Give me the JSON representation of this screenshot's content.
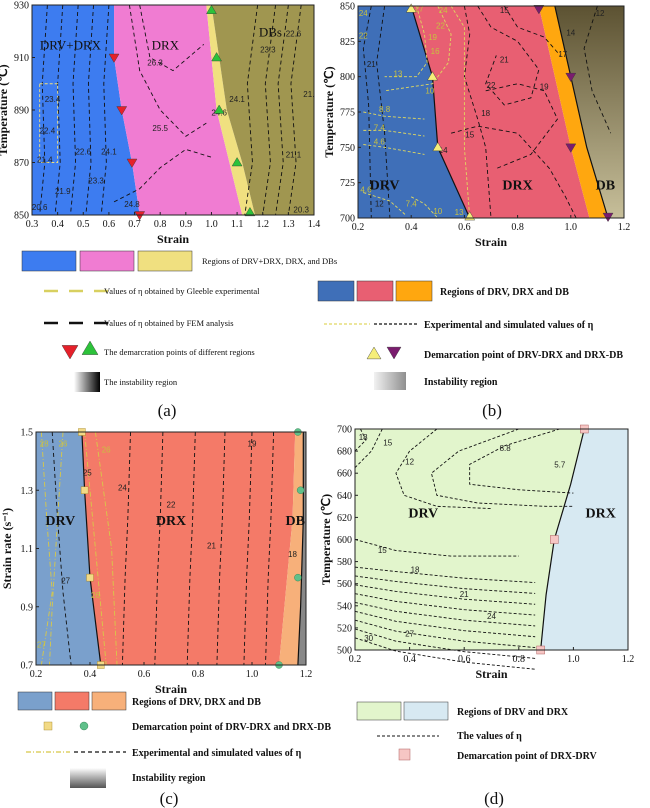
{
  "chart_data": [
    {
      "panel": "(a)",
      "type": "area",
      "xlabel": "Strain",
      "ylabel": "Temperature (℃)",
      "xlim": [
        0.3,
        1.4
      ],
      "ylim": [
        850,
        930
      ],
      "xticks": [
        "0.3",
        "0.4",
        "0.5",
        "0.6",
        "0.7",
        "0.8",
        "0.9",
        "1.0",
        "1.1",
        "1.2",
        "1.3",
        "1.4"
      ],
      "yticks": [
        "850",
        "870",
        "890",
        "910",
        "930"
      ],
      "regions": [
        "DRV+DRX",
        "DRX",
        "DBs"
      ],
      "colors": {
        "drv": "#3d7cf0",
        "drx": "#f07cd2",
        "db": "#a09650",
        "band": "#f0e080"
      },
      "contour_labels": [
        {
          "text": "26.3",
          "x": 0.78,
          "y": 907
        },
        {
          "text": "25.5",
          "x": 0.8,
          "y": 882
        },
        {
          "text": "24.8",
          "x": 0.69,
          "y": 853
        },
        {
          "text": "24.6",
          "x": 1.03,
          "y": 888
        },
        {
          "text": "24.1",
          "x": 1.1,
          "y": 893
        },
        {
          "text": "23.3",
          "x": 1.22,
          "y": 912
        },
        {
          "text": "22.6",
          "x": 1.32,
          "y": 918
        },
        {
          "text": "21.",
          "x": 1.38,
          "y": 895
        },
        {
          "text": "21.1",
          "x": 1.32,
          "y": 872
        },
        {
          "text": "20.3",
          "x": 1.35,
          "y": 851
        },
        {
          "text": "22.6",
          "x": 0.5,
          "y": 873
        },
        {
          "text": "23.3",
          "x": 0.55,
          "y": 862
        },
        {
          "text": "24.1",
          "x": 0.6,
          "y": 873
        },
        {
          "text": "21.4",
          "x": 0.35,
          "y": 870
        },
        {
          "text": "21.9",
          "x": 0.42,
          "y": 858
        },
        {
          "text": "20.6",
          "x": 0.33,
          "y": 852
        },
        {
          "text": "22.4",
          "x": 0.36,
          "y": 881
        },
        {
          "text": "23.4",
          "x": 0.38,
          "y": 893
        }
      ],
      "points": [
        {
          "x": 0.62,
          "y": 910,
          "c": "red"
        },
        {
          "x": 0.65,
          "y": 890,
          "c": "red"
        },
        {
          "x": 0.69,
          "y": 870,
          "c": "red"
        },
        {
          "x": 0.72,
          "y": 850,
          "c": "red"
        },
        {
          "x": 1.0,
          "y": 928,
          "c": "green"
        },
        {
          "x": 1.02,
          "y": 910,
          "c": "green"
        },
        {
          "x": 1.03,
          "y": 890,
          "c": "green"
        },
        {
          "x": 1.1,
          "y": 870,
          "c": "green"
        },
        {
          "x": 1.15,
          "y": 851,
          "c": "green"
        }
      ],
      "legend": [
        "Regions of DRV+DRX, DRX, and DBs",
        "Values of η obtained by Gleeble experimental",
        "Values of η obtained by FEM analysis",
        "The demarcration points of different regions",
        "The instability region"
      ]
    },
    {
      "panel": "(b)",
      "type": "area",
      "xlabel": "Strain",
      "ylabel": "Temperature (℃)",
      "xlim": [
        0.2,
        1.2
      ],
      "ylim": [
        700,
        850
      ],
      "xticks": [
        "0.2",
        "0.4",
        "0.6",
        "0.8",
        "1.0",
        "1.2"
      ],
      "yticks": [
        "700",
        "725",
        "750",
        "775",
        "800",
        "825",
        "850"
      ],
      "regions": [
        "DRV",
        "DRX",
        "DB"
      ],
      "colors": {
        "drv": "#3f6fb8",
        "drx": "#e85f72",
        "db": "#ffa70f",
        "instab": "#8a7a50"
      },
      "contour_labels": [
        {
          "text": "24",
          "x": 0.22,
          "y": 843
        },
        {
          "text": "22",
          "x": 0.22,
          "y": 827
        },
        {
          "text": "21",
          "x": 0.25,
          "y": 807
        },
        {
          "text": "27",
          "x": 0.43,
          "y": 846
        },
        {
          "text": "24",
          "x": 0.52,
          "y": 845
        },
        {
          "text": "22",
          "x": 0.51,
          "y": 834
        },
        {
          "text": "19",
          "x": 0.48,
          "y": 826
        },
        {
          "text": "16",
          "x": 0.49,
          "y": 816
        },
        {
          "text": "13",
          "x": 0.35,
          "y": 800
        },
        {
          "text": "10",
          "x": 0.47,
          "y": 788
        },
        {
          "text": "8.8",
          "x": 0.3,
          "y": 775
        },
        {
          "text": "7.4",
          "x": 0.28,
          "y": 762
        },
        {
          "text": "4.6",
          "x": 0.28,
          "y": 752
        },
        {
          "text": "15",
          "x": 0.75,
          "y": 845
        },
        {
          "text": "21",
          "x": 0.75,
          "y": 810
        },
        {
          "text": "22",
          "x": 0.7,
          "y": 792
        },
        {
          "text": "19",
          "x": 0.9,
          "y": 791
        },
        {
          "text": "18",
          "x": 0.68,
          "y": 772
        },
        {
          "text": "15",
          "x": 0.62,
          "y": 757
        },
        {
          "text": "14",
          "x": 0.52,
          "y": 746
        },
        {
          "text": "17",
          "x": 0.97,
          "y": 814
        },
        {
          "text": "14",
          "x": 1.0,
          "y": 829
        },
        {
          "text": "12",
          "x": 1.11,
          "y": 843
        },
        {
          "text": "4.6",
          "x": 0.23,
          "y": 718
        },
        {
          "text": "12",
          "x": 0.28,
          "y": 708
        },
        {
          "text": "7.4",
          "x": 0.4,
          "y": 708
        },
        {
          "text": "10",
          "x": 0.5,
          "y": 703
        },
        {
          "text": "13",
          "x": 0.58,
          "y": 702
        }
      ],
      "points": [
        {
          "x": 0.4,
          "y": 848,
          "c": "yellow"
        },
        {
          "x": 0.48,
          "y": 800,
          "c": "yellow"
        },
        {
          "x": 0.5,
          "y": 750,
          "c": "yellow"
        },
        {
          "x": 0.62,
          "y": 701,
          "c": "yellow"
        },
        {
          "x": 0.88,
          "y": 848,
          "c": "purple"
        },
        {
          "x": 1.0,
          "y": 800,
          "c": "purple"
        },
        {
          "x": 1.0,
          "y": 750,
          "c": "purple"
        },
        {
          "x": 1.14,
          "y": 701,
          "c": "purple"
        }
      ],
      "legend": [
        "Regions of DRV, DRX and DB",
        "Experimental and simulated values of η",
        "Demarcation point of DRV-DRX and DRX-DB",
        "Instability region"
      ]
    },
    {
      "panel": "(c)",
      "type": "area",
      "xlabel": "Strain",
      "ylabel": "Strain rate (s⁻¹)",
      "xlim": [
        0.2,
        1.2
      ],
      "ylim": [
        0.7,
        1.5
      ],
      "xticks": [
        "0.2",
        "0.4",
        "0.6",
        "0.8",
        "1.0",
        "1.2"
      ],
      "yticks": [
        "0.7",
        "0.9",
        "1.1",
        "1.3",
        "1.5"
      ],
      "regions": [
        "DRV",
        "DRX",
        "DB"
      ],
      "colors": {
        "drv": "#7aa0cc",
        "drx": "#f47a68",
        "db": "#f7b07a",
        "instab": "#888888"
      },
      "contour_labels": [
        {
          "text": "28",
          "x": 0.23,
          "y": 1.45
        },
        {
          "text": "26",
          "x": 0.3,
          "y": 1.45
        },
        {
          "text": "26",
          "x": 0.46,
          "y": 1.43
        },
        {
          "text": "25",
          "x": 0.39,
          "y": 1.35
        },
        {
          "text": "24",
          "x": 0.52,
          "y": 1.3
        },
        {
          "text": "22",
          "x": 0.7,
          "y": 1.24
        },
        {
          "text": "21",
          "x": 0.85,
          "y": 1.1
        },
        {
          "text": "19",
          "x": 1.0,
          "y": 1.45
        },
        {
          "text": "18",
          "x": 1.15,
          "y": 1.07
        },
        {
          "text": "27",
          "x": 0.31,
          "y": 0.98
        },
        {
          "text": "26",
          "x": 0.42,
          "y": 0.93
        },
        {
          "text": "27",
          "x": 0.22,
          "y": 0.76
        }
      ],
      "points": [
        {
          "x": 0.37,
          "y": 1.5,
          "c": "gold"
        },
        {
          "x": 0.38,
          "y": 1.3,
          "c": "gold"
        },
        {
          "x": 0.4,
          "y": 1.0,
          "c": "gold"
        },
        {
          "x": 0.44,
          "y": 0.7,
          "c": "gold"
        },
        {
          "x": 1.17,
          "y": 1.5,
          "c": "green"
        },
        {
          "x": 1.18,
          "y": 1.3,
          "c": "green"
        },
        {
          "x": 1.17,
          "y": 1.0,
          "c": "green"
        },
        {
          "x": 1.1,
          "y": 0.7,
          "c": "green"
        }
      ],
      "legend": [
        "Regions of DRV, DRX and DB",
        "Demarcation point of DRV-DRX and DRX-DB",
        "Experimental and simulated values of η",
        "Instability region"
      ]
    },
    {
      "panel": "(d)",
      "type": "area",
      "xlabel": "Strain",
      "ylabel": "Temperature (℃)",
      "xlim": [
        0.2,
        1.2
      ],
      "ylim": [
        500,
        700
      ],
      "xticks": [
        "0.2",
        "0.4",
        "0.6",
        "0.8",
        "1.0",
        "1.2"
      ],
      "yticks": [
        "500",
        "520",
        "540",
        "560",
        "580",
        "600",
        "620",
        "640",
        "660",
        "680",
        "700"
      ],
      "regions": [
        "DRV",
        "DRX"
      ],
      "colors": {
        "drv": "#e2f5cc",
        "drx": "#d7e9f2"
      },
      "contour_labels": [
        {
          "text": "18",
          "x": 0.23,
          "y": 690
        },
        {
          "text": "15",
          "x": 0.32,
          "y": 685
        },
        {
          "text": "12",
          "x": 0.4,
          "y": 668
        },
        {
          "text": "8.8",
          "x": 0.75,
          "y": 680
        },
        {
          "text": "5.7",
          "x": 0.95,
          "y": 665
        },
        {
          "text": "15",
          "x": 0.3,
          "y": 588
        },
        {
          "text": "18",
          "x": 0.42,
          "y": 570
        },
        {
          "text": "21",
          "x": 0.6,
          "y": 548
        },
        {
          "text": "24",
          "x": 0.7,
          "y": 528
        },
        {
          "text": "27",
          "x": 0.4,
          "y": 512
        },
        {
          "text": "30",
          "x": 0.25,
          "y": 508
        }
      ],
      "points": [
        {
          "x": 1.04,
          "y": 700
        },
        {
          "x": 0.93,
          "y": 600
        },
        {
          "x": 0.88,
          "y": 500
        }
      ],
      "legend": [
        "Regions of DRV and DRX",
        "The values of η",
        "Demarcation point of DRX-DRV"
      ]
    }
  ]
}
